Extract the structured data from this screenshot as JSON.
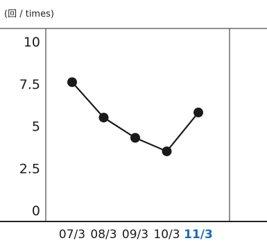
{
  "chart_data": {
    "type": "line",
    "unit_label": "(回 / times)",
    "ylabel": "",
    "xlabel": "",
    "categories": [
      "07/3",
      "08/3",
      "09/3",
      "10/3",
      "11/3"
    ],
    "highlight_category": "11/3",
    "series": [
      {
        "values": [
          7.6,
          5.5,
          4.3,
          3.5,
          5.8
        ]
      }
    ],
    "y_ticks": [
      "0",
      "2.5",
      "5",
      "7.5",
      "10"
    ],
    "ylim": [
      0,
      10
    ],
    "grid": false,
    "legend": "none",
    "colors": {
      "line": "#1a1a1a",
      "highlight_label": "#1a6bb8"
    }
  }
}
